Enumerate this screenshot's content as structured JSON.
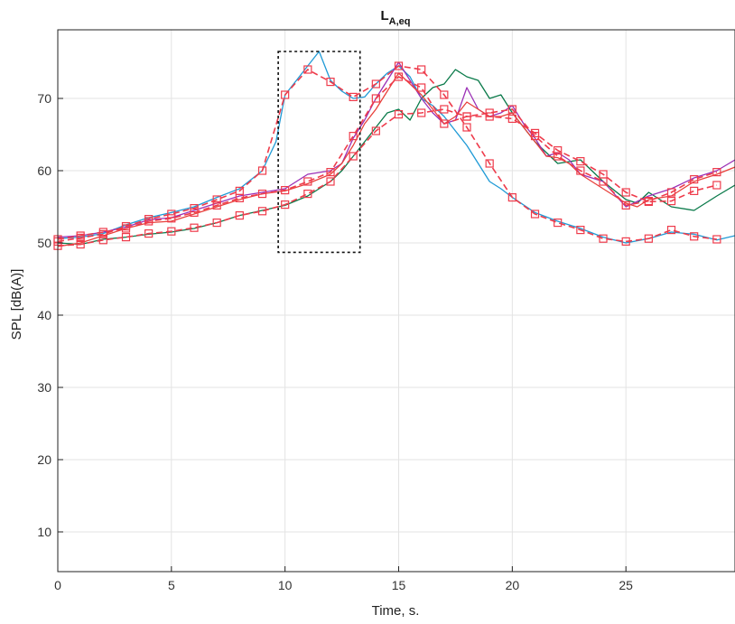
{
  "chart_data": {
    "type": "line",
    "title": {
      "main": "L",
      "subscript": "A,eq"
    },
    "xlabel": "Time, s.",
    "ylabel": "SPL [dB(A)]",
    "xlim": [
      0,
      29.8
    ],
    "ylim": [
      4.5,
      79.5
    ],
    "xticks": [
      0,
      5,
      10,
      15,
      20,
      25
    ],
    "yticks": [
      10,
      20,
      30,
      40,
      50,
      60,
      70
    ],
    "grid": true,
    "highlight_box": {
      "x": [
        9.7,
        13.3
      ],
      "y": [
        48.7,
        76.5
      ]
    },
    "series": [
      {
        "color": "#1f9ad6",
        "points": [
          [
            0,
            50.6
          ],
          [
            1,
            50.8
          ],
          [
            2,
            51.3
          ],
          [
            3,
            52.5
          ],
          [
            4,
            53.5
          ],
          [
            5,
            54.2
          ],
          [
            6,
            55.0
          ],
          [
            7,
            56.3
          ],
          [
            8,
            57.5
          ],
          [
            9,
            60.0
          ],
          [
            9.6,
            64.0
          ],
          [
            10,
            70.5
          ],
          [
            10.5,
            72.5
          ],
          [
            11,
            74.5
          ],
          [
            11.5,
            76.5
          ],
          [
            12,
            72.5
          ],
          [
            12.5,
            71.0
          ],
          [
            13,
            70.0
          ],
          [
            13.5,
            70.2
          ],
          [
            14,
            72.0
          ],
          [
            14.5,
            73.5
          ],
          [
            15,
            74.5
          ],
          [
            15.5,
            73.0
          ],
          [
            16,
            70.0
          ],
          [
            16.5,
            69.0
          ],
          [
            17,
            67.5
          ],
          [
            17.5,
            65.5
          ],
          [
            18,
            63.5
          ],
          [
            18.5,
            61.0
          ],
          [
            19,
            58.5
          ],
          [
            19.5,
            57.5
          ],
          [
            20,
            56.3
          ],
          [
            21,
            54.2
          ],
          [
            22,
            53.0
          ],
          [
            23,
            52.0
          ],
          [
            24,
            50.8
          ],
          [
            25,
            50.0
          ],
          [
            26,
            50.6
          ],
          [
            27,
            51.5
          ],
          [
            28,
            51.2
          ],
          [
            29,
            50.4
          ],
          [
            29.8,
            51.0
          ]
        ]
      },
      {
        "color": "#0a7a4a",
        "points": [
          [
            0,
            50.0
          ],
          [
            1,
            49.8
          ],
          [
            2,
            50.5
          ],
          [
            3,
            50.8
          ],
          [
            4,
            51.2
          ],
          [
            5,
            51.5
          ],
          [
            6,
            52.0
          ],
          [
            7,
            52.8
          ],
          [
            8,
            53.8
          ],
          [
            9,
            54.5
          ],
          [
            10,
            55.2
          ],
          [
            11,
            56.5
          ],
          [
            12,
            58.5
          ],
          [
            12.5,
            60.0
          ],
          [
            13,
            62.0
          ],
          [
            13.5,
            64.0
          ],
          [
            14,
            66.0
          ],
          [
            14.5,
            68.0
          ],
          [
            15,
            68.5
          ],
          [
            15.5,
            67.0
          ],
          [
            16,
            70.0
          ],
          [
            16.5,
            71.5
          ],
          [
            17,
            72.0
          ],
          [
            17.5,
            74.0
          ],
          [
            18,
            73.0
          ],
          [
            18.5,
            72.5
          ],
          [
            19,
            70.0
          ],
          [
            19.5,
            70.5
          ],
          [
            20,
            68.0
          ],
          [
            20.5,
            66.0
          ],
          [
            21,
            64.0
          ],
          [
            21.5,
            62.5
          ],
          [
            22,
            61.0
          ],
          [
            23,
            61.5
          ],
          [
            24,
            58.5
          ],
          [
            25,
            56.0
          ],
          [
            25.5,
            55.5
          ],
          [
            26,
            57.0
          ],
          [
            26.5,
            56.0
          ],
          [
            27,
            55.0
          ],
          [
            28,
            54.5
          ],
          [
            29,
            56.5
          ],
          [
            29.8,
            58.0
          ]
        ]
      },
      {
        "color": "#9b30b6",
        "points": [
          [
            0,
            50.8
          ],
          [
            1,
            51.0
          ],
          [
            2,
            51.5
          ],
          [
            3,
            52.2
          ],
          [
            4,
            53.2
          ],
          [
            5,
            53.5
          ],
          [
            6,
            54.5
          ],
          [
            7,
            55.5
          ],
          [
            8,
            56.5
          ],
          [
            9,
            57.0
          ],
          [
            10,
            57.5
          ],
          [
            11,
            59.5
          ],
          [
            12,
            60.0
          ],
          [
            12.5,
            61.0
          ],
          [
            13,
            64.5
          ],
          [
            13.5,
            67.0
          ],
          [
            14,
            70.0
          ],
          [
            14.5,
            72.5
          ],
          [
            15,
            75.0
          ],
          [
            15.5,
            72.5
          ],
          [
            16,
            70.0
          ],
          [
            16.5,
            68.0
          ],
          [
            17,
            66.5
          ],
          [
            17.5,
            67.0
          ],
          [
            18,
            71.5
          ],
          [
            18.5,
            68.5
          ],
          [
            19,
            67.5
          ],
          [
            19.5,
            68.0
          ],
          [
            20,
            69.0
          ],
          [
            20.5,
            66.5
          ],
          [
            21,
            64.5
          ],
          [
            21.5,
            62.0
          ],
          [
            22,
            62.5
          ],
          [
            22.5,
            61.5
          ],
          [
            23,
            59.5
          ],
          [
            24,
            58.5
          ],
          [
            25,
            55.0
          ],
          [
            26,
            56.5
          ],
          [
            27,
            57.5
          ],
          [
            28,
            59.0
          ],
          [
            29,
            60.0
          ],
          [
            29.8,
            61.5
          ]
        ]
      },
      {
        "color": "#e8413c",
        "points": [
          [
            0,
            49.5
          ],
          [
            1,
            50.0
          ],
          [
            2,
            51.0
          ],
          [
            3,
            52.0
          ],
          [
            4,
            52.8
          ],
          [
            5,
            53.0
          ],
          [
            6,
            54.0
          ],
          [
            7,
            55.0
          ],
          [
            8,
            56.0
          ],
          [
            9,
            56.8
          ],
          [
            10,
            57.2
          ],
          [
            11,
            58.2
          ],
          [
            12,
            59.5
          ],
          [
            12.5,
            61.0
          ],
          [
            13,
            63.5
          ],
          [
            13.5,
            66.5
          ],
          [
            14,
            68.5
          ],
          [
            14.5,
            71.0
          ],
          [
            15,
            73.5
          ],
          [
            15.5,
            72.0
          ],
          [
            16,
            70.5
          ],
          [
            16.5,
            68.5
          ],
          [
            17,
            66.5
          ],
          [
            17.5,
            67.5
          ],
          [
            18,
            69.5
          ],
          [
            18.5,
            68.5
          ],
          [
            19,
            67.5
          ],
          [
            19.5,
            67.5
          ],
          [
            20,
            68.0
          ],
          [
            20.5,
            66.0
          ],
          [
            21,
            64.0
          ],
          [
            21.5,
            62.0
          ],
          [
            22,
            61.8
          ],
          [
            22.5,
            61.0
          ],
          [
            23,
            59.5
          ],
          [
            24,
            57.5
          ],
          [
            25,
            55.5
          ],
          [
            25.5,
            55.0
          ],
          [
            26,
            56.0
          ],
          [
            27,
            56.5
          ],
          [
            28,
            58.5
          ],
          [
            29,
            59.5
          ],
          [
            29.8,
            60.5
          ]
        ]
      }
    ],
    "marker_series": [
      {
        "style": "dashed line with square markers",
        "color": "#ee3b4b",
        "points": [
          [
            0,
            50.2
          ],
          [
            1,
            50.7
          ],
          [
            2,
            51.2
          ],
          [
            3,
            52.3
          ],
          [
            4,
            53.3
          ],
          [
            5,
            54.0
          ],
          [
            6,
            54.8
          ],
          [
            7,
            56.0
          ],
          [
            8,
            57.2
          ],
          [
            9,
            60.0
          ],
          [
            10,
            70.5
          ],
          [
            11,
            74.0
          ],
          [
            12,
            72.3
          ],
          [
            13,
            70.2
          ],
          [
            14,
            72.0
          ],
          [
            15,
            74.5
          ],
          [
            16,
            74.0
          ],
          [
            17,
            70.5
          ],
          [
            18,
            66.0
          ],
          [
            19,
            61.0
          ],
          [
            20,
            56.3
          ],
          [
            21,
            54.0
          ],
          [
            22,
            52.8
          ],
          [
            23,
            51.8
          ],
          [
            24,
            50.6
          ],
          [
            25,
            50.2
          ],
          [
            26,
            50.6
          ],
          [
            27,
            51.8
          ],
          [
            28,
            50.9
          ],
          [
            29,
            50.5
          ]
        ]
      },
      {
        "style": "dashed line with square markers",
        "color": "#ee3b4b",
        "points": [
          [
            0,
            49.6
          ],
          [
            1,
            49.8
          ],
          [
            2,
            50.4
          ],
          [
            3,
            50.8
          ],
          [
            4,
            51.3
          ],
          [
            5,
            51.6
          ],
          [
            6,
            52.1
          ],
          [
            7,
            52.8
          ],
          [
            8,
            53.8
          ],
          [
            9,
            54.4
          ],
          [
            10,
            55.3
          ],
          [
            11,
            56.8
          ],
          [
            12,
            58.5
          ],
          [
            13,
            62.0
          ],
          [
            14,
            65.5
          ],
          [
            15,
            67.8
          ],
          [
            16,
            68.0
          ],
          [
            17,
            68.5
          ],
          [
            18,
            67.5
          ],
          [
            19,
            67.5
          ],
          [
            20,
            67.2
          ],
          [
            21,
            65.2
          ],
          [
            22,
            62.8
          ],
          [
            23,
            61.3
          ],
          [
            24,
            59.5
          ],
          [
            25,
            57.0
          ],
          [
            26,
            55.7
          ],
          [
            27,
            55.8
          ],
          [
            28,
            57.2
          ],
          [
            29,
            58.0
          ]
        ]
      },
      {
        "style": "dashed line with square markers",
        "color": "#ee3b4b",
        "points": [
          [
            0,
            50.5
          ],
          [
            1,
            51.0
          ],
          [
            2,
            51.5
          ],
          [
            3,
            52.0
          ],
          [
            4,
            53.0
          ],
          [
            5,
            53.4
          ],
          [
            6,
            54.2
          ],
          [
            7,
            55.2
          ],
          [
            8,
            56.2
          ],
          [
            9,
            56.8
          ],
          [
            10,
            57.3
          ],
          [
            11,
            58.5
          ],
          [
            12,
            59.8
          ],
          [
            13,
            64.8
          ],
          [
            14,
            70.0
          ],
          [
            15,
            73.0
          ],
          [
            16,
            71.5
          ],
          [
            17,
            66.5
          ],
          [
            18,
            67.5
          ],
          [
            19,
            68.0
          ],
          [
            20,
            68.5
          ],
          [
            21,
            64.8
          ],
          [
            22,
            62.0
          ],
          [
            23,
            60.0
          ],
          [
            24,
            58.5
          ],
          [
            25,
            55.2
          ],
          [
            26,
            55.8
          ],
          [
            27,
            57.0
          ],
          [
            28,
            58.8
          ],
          [
            29,
            59.8
          ]
        ]
      }
    ]
  }
}
